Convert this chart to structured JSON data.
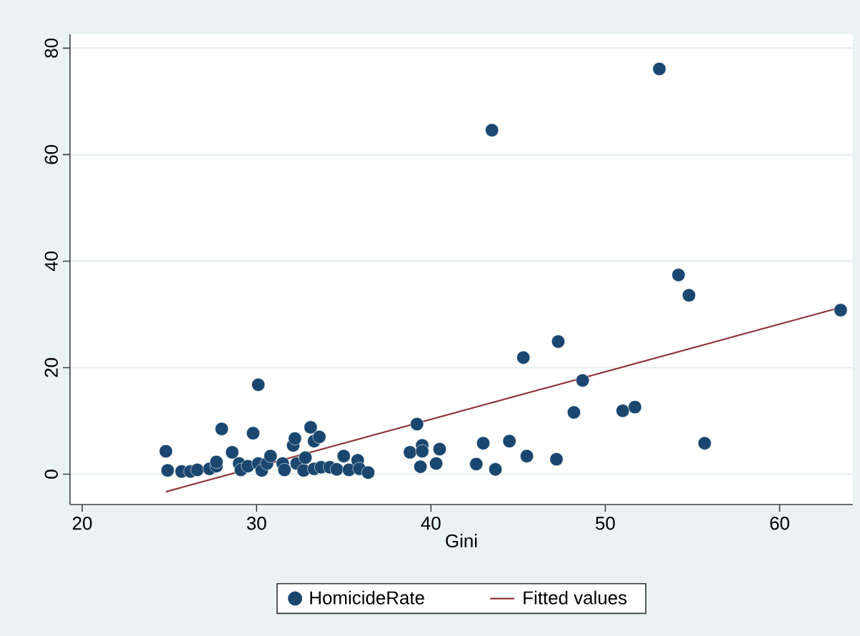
{
  "chart_data": {
    "type": "scatter",
    "xlabel": "Gini",
    "xlim": [
      19.3,
      64.2
    ],
    "ylim": [
      -5.7,
      82.6
    ],
    "xticks": [
      20,
      30,
      40,
      50,
      60
    ],
    "yticks": [
      0,
      20,
      40,
      60,
      80
    ],
    "grid": "y",
    "legend": "bottom",
    "series": [
      {
        "name": "HomicideRate",
        "marker": "circle",
        "color": "#1a476f",
        "x": [
          24.8,
          24.9,
          25.7,
          26.2,
          26.6,
          27.3,
          27.7,
          27.7,
          28.0,
          28.6,
          29.0,
          29.1,
          29.5,
          29.8,
          30.1,
          30.1,
          30.3,
          30.6,
          30.8,
          31.5,
          31.6,
          32.1,
          32.2,
          32.3,
          32.7,
          32.8,
          33.1,
          33.3,
          33.6,
          33.3,
          33.7,
          34.2,
          34.6,
          35.0,
          35.3,
          35.8,
          35.9,
          36.4,
          38.8,
          39.2,
          39.5,
          39.5,
          39.4,
          40.3,
          40.5,
          42.6,
          43.0,
          43.5,
          43.7,
          44.5,
          45.3,
          45.5,
          47.2,
          47.3,
          48.2,
          48.7,
          51.0,
          51.7,
          53.1,
          54.2,
          54.8,
          55.7,
          63.5
        ],
        "values": [
          4.3,
          0.7,
          0.5,
          0.5,
          0.8,
          1.0,
          1.5,
          2.3,
          8.5,
          4.1,
          2.0,
          0.8,
          1.5,
          7.7,
          16.8,
          2.0,
          0.7,
          2.0,
          3.4,
          2.0,
          0.8,
          5.4,
          6.7,
          2.0,
          0.7,
          3.1,
          8.8,
          6.2,
          7.0,
          1.0,
          1.3,
          1.3,
          0.9,
          3.4,
          0.8,
          2.6,
          1.0,
          0.3,
          4.1,
          9.4,
          5.4,
          4.3,
          1.4,
          2.0,
          4.7,
          1.9,
          5.8,
          64.6,
          0.9,
          6.2,
          21.9,
          3.4,
          2.8,
          24.9,
          11.6,
          17.6,
          11.9,
          12.6,
          76.1,
          37.4,
          33.6,
          5.8,
          30.8
        ]
      },
      {
        "name": "Fitted values",
        "type": "line",
        "marker": "none",
        "line_style": "solid",
        "color": "#90353b",
        "x": [
          24.8,
          63.5
        ],
        "values": [
          -3.3,
          31.3
        ]
      }
    ]
  }
}
